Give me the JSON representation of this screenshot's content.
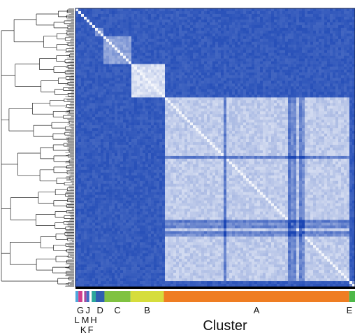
{
  "chart_data": {
    "type": "heatmap",
    "title": "",
    "xlabel": "Cluster",
    "ylabel": "",
    "legend": "none",
    "grid": false,
    "dendrogram_side": "left",
    "colormap": {
      "low": "#1a45b4",
      "high": "#ffffff"
    },
    "clusters": [
      {
        "name": "L",
        "fraction": 0.01,
        "color": "#4ea7dc",
        "within": 0.6
      },
      {
        "name": "G",
        "fraction": 0.014,
        "color": "#d13e8c",
        "within": 0.55
      },
      {
        "name": "K",
        "fraction": 0.006,
        "color": "#ffffff",
        "within": 0.55
      },
      {
        "name": "M",
        "fraction": 0.008,
        "color": "#a64aa0",
        "within": 0.55
      },
      {
        "name": "J",
        "fraction": 0.01,
        "color": "#3f6fc4",
        "within": 0.55
      },
      {
        "name": "F",
        "fraction": 0.008,
        "color": "#ffffff",
        "within": 0.55
      },
      {
        "name": "H",
        "fraction": 0.014,
        "color": "#2ba89b",
        "within": 0.55
      },
      {
        "name": "D",
        "fraction": 0.03,
        "color": "#2f5fb0",
        "within": 0.45
      },
      {
        "name": "C",
        "fraction": 0.09,
        "color": "#80c241",
        "within": 0.5
      },
      {
        "name": "B",
        "fraction": 0.115,
        "color": "#d6dd3c",
        "within": 0.82
      },
      {
        "name": "A",
        "fraction": 0.64,
        "color": "#ef7d22",
        "within": 0.72
      },
      {
        "name": "E",
        "fraction": 0.02,
        "color": "#4db848",
        "within": 0.4
      }
    ],
    "between_cluster_level": 0.12,
    "labels_row1": [
      "G",
      "J",
      "D",
      "C",
      "B",
      "A",
      "E"
    ],
    "labels_row2": [
      "L",
      "M",
      "H"
    ],
    "labels_row3": [
      "K",
      "F"
    ]
  }
}
